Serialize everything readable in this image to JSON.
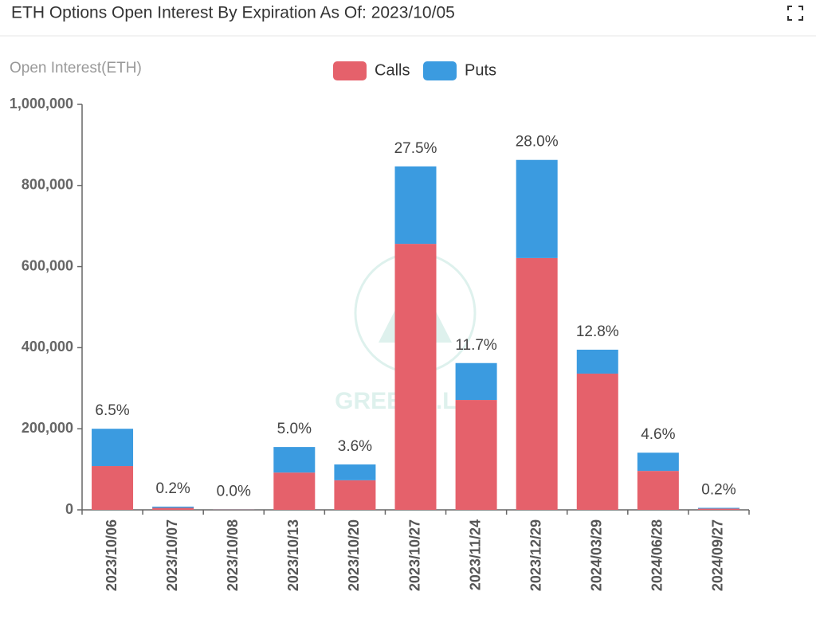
{
  "chart_data": {
    "type": "stacked_bar",
    "title": "ETH Options Open Interest By Expiration As Of: 2023/10/05",
    "y_axis_label": "Open Interest(ETH)",
    "watermark": "GREEKS.LIVE",
    "categories": [
      "2023/10/06",
      "2023/10/07",
      "2023/10/08",
      "2023/10/13",
      "2023/10/20",
      "2023/10/27",
      "2023/11/24",
      "2023/12/29",
      "2024/03/29",
      "2024/06/28",
      "2024/09/27"
    ],
    "series": [
      {
        "name": "Calls",
        "color": "#e5616b",
        "values": [
          108000,
          5000,
          500,
          92000,
          73000,
          656000,
          271000,
          621000,
          336000,
          96000,
          3000
        ]
      },
      {
        "name": "Puts",
        "color": "#3b9be0",
        "values": [
          92000,
          3000,
          200,
          63000,
          39000,
          191000,
          91000,
          242000,
          59000,
          45000,
          2000
        ]
      }
    ],
    "share_labels": [
      "6.5%",
      "0.2%",
      "0.0%",
      "5.0%",
      "3.6%",
      "27.5%",
      "11.7%",
      "28.0%",
      "12.8%",
      "4.6%",
      "0.2%"
    ],
    "ylim": [
      0,
      1000000
    ],
    "yticks": [
      0,
      {
        "value": 200000,
        "label": "200,000"
      },
      {
        "value": 400000,
        "label": "400,000"
      },
      {
        "value": 600000,
        "label": "600,000"
      },
      {
        "value": 800000,
        "label": "800,000"
      },
      {
        "value": 1000000,
        "label": "1,000,000"
      }
    ],
    "legend_position": "top"
  }
}
